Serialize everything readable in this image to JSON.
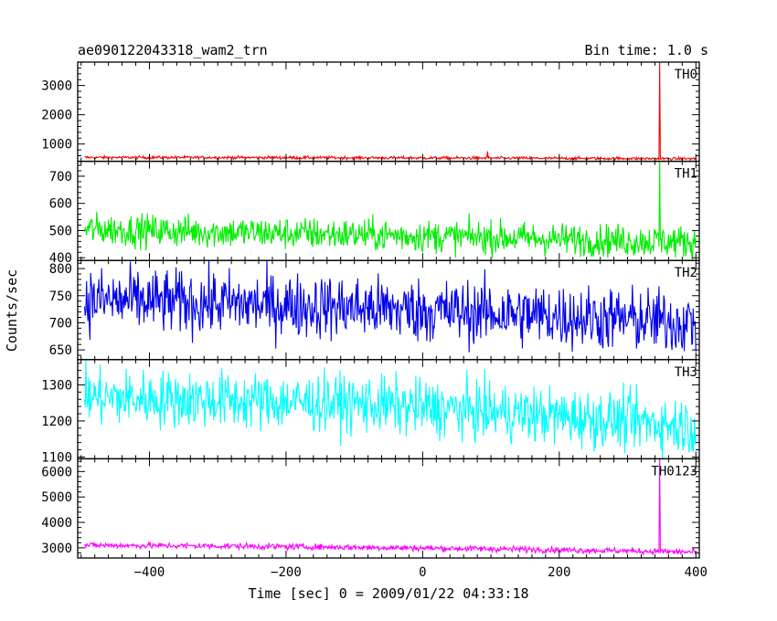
{
  "chart_data": {
    "type": "line",
    "title": "ae090122043318_wam2_trn",
    "subtitle": "Bin time: 1.0 s",
    "xlabel": "Time [sec] 0 = 2009/01/22 04:33:18",
    "ylabel": "Counts/sec",
    "xlim": [
      -505,
      405
    ],
    "x_ticks": [
      -400,
      -200,
      0,
      200,
      400
    ],
    "x_tick_labels": [
      "−400",
      "−200",
      "0",
      "200",
      "400"
    ],
    "panels": [
      {
        "name": "TH0",
        "color": "#ff0000",
        "ylim": [
          410,
          3800
        ],
        "y_ticks": [
          1000,
          2000,
          3000
        ],
        "y_tick_labels": [
          "1000",
          "2000",
          "3000"
        ],
        "trend": [
          [
            -495,
            540
          ],
          [
            -300,
            540
          ],
          [
            -100,
            530
          ],
          [
            100,
            520
          ],
          [
            300,
            505
          ],
          [
            400,
            495
          ]
        ],
        "noise": 25,
        "spikes": [
          {
            "x": 95,
            "y": 750
          },
          {
            "x": 347,
            "y": 3800
          }
        ]
      },
      {
        "name": "TH1",
        "color": "#00ee00",
        "ylim": [
          390,
          755
        ],
        "y_ticks": [
          400,
          500,
          600,
          700
        ],
        "y_tick_labels": [
          "400",
          "500",
          "600",
          "700"
        ],
        "trend": [
          [
            -495,
            505
          ],
          [
            -300,
            495
          ],
          [
            -100,
            485
          ],
          [
            100,
            475
          ],
          [
            300,
            462
          ],
          [
            400,
            458
          ]
        ],
        "noise": 30,
        "spikes": [
          {
            "x": 347,
            "y": 755
          }
        ]
      },
      {
        "name": "TH2",
        "color": "#0000ee",
        "ylim": [
          632,
          815
        ],
        "y_ticks": [
          650,
          700,
          750,
          800
        ],
        "y_tick_labels": [
          "650",
          "700",
          "750",
          "800"
        ],
        "trend": [
          [
            -495,
            742
          ],
          [
            -300,
            736
          ],
          [
            -100,
            728
          ],
          [
            100,
            718
          ],
          [
            300,
            706
          ],
          [
            400,
            700
          ]
        ],
        "noise": 30,
        "spikes": []
      },
      {
        "name": "TH3",
        "color": "#00ffff",
        "ylim": [
          1095,
          1370
        ],
        "y_ticks": [
          1100,
          1200,
          1300
        ],
        "y_tick_labels": [
          "1100",
          "1200",
          "1300"
        ],
        "trend": [
          [
            -495,
            1265
          ],
          [
            -300,
            1258
          ],
          [
            -100,
            1248
          ],
          [
            100,
            1225
          ],
          [
            300,
            1200
          ],
          [
            400,
            1185
          ]
        ],
        "noise": 40,
        "spikes": []
      },
      {
        "name": "TH0123",
        "color": "#ff00ff",
        "ylim": [
          2600,
          6500
        ],
        "y_ticks": [
          3000,
          4000,
          5000,
          6000
        ],
        "y_tick_labels": [
          "3000",
          "4000",
          "5000",
          "6000"
        ],
        "trend": [
          [
            -495,
            3100
          ],
          [
            -300,
            3070
          ],
          [
            -100,
            3020
          ],
          [
            100,
            2960
          ],
          [
            300,
            2880
          ],
          [
            400,
            2830
          ]
        ],
        "noise": 60,
        "spikes": [
          {
            "x": 347,
            "y": 6500
          }
        ]
      }
    ]
  }
}
